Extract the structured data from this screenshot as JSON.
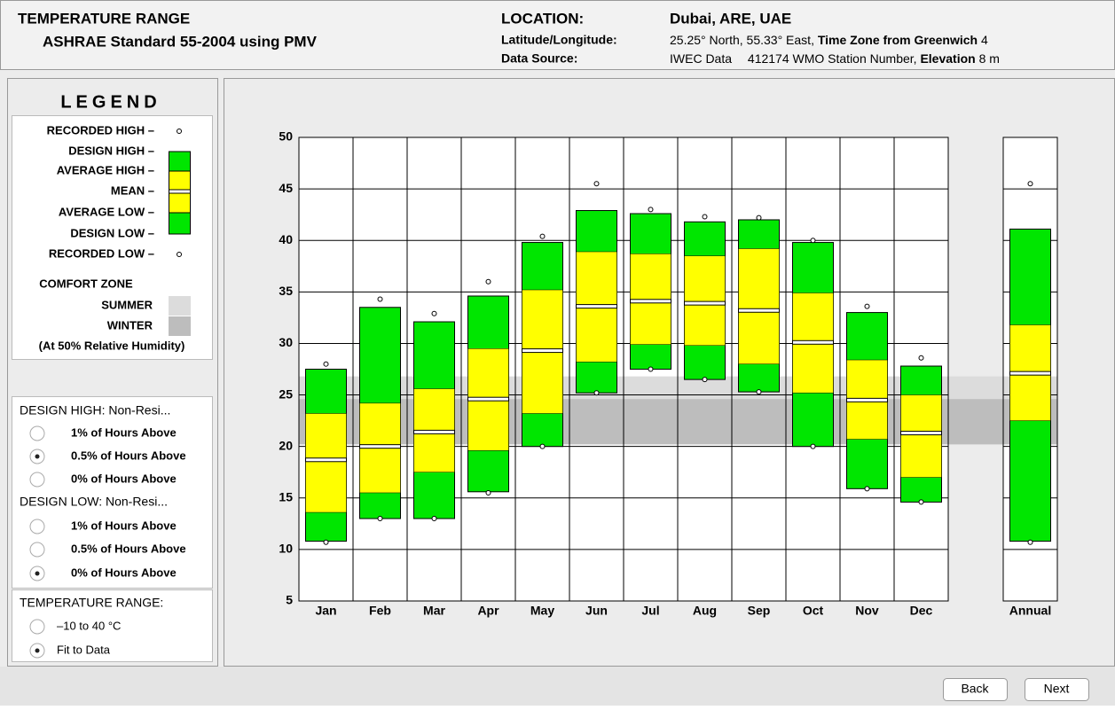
{
  "header": {
    "title": "TEMPERATURE RANGE",
    "subtitle": "ASHRAE Standard 55-2004 using PMV",
    "location_label": "LOCATION:",
    "location": "Dubai, ARE, UAE",
    "latlon_label": "Latitude/Longitude:",
    "latlon": "25.25° North, 55.33° East,",
    "timezone_label": "Time Zone from Greenwich",
    "timezone": "4",
    "source_label": "Data Source:",
    "source": "IWEC Data",
    "station": "412174 WMO Station Number,",
    "elevation_label": "Elevation",
    "elevation": "8 m"
  },
  "legend": {
    "title": "LEGEND",
    "comfort_title": "COMFORT ZONE",
    "summer": "SUMMER",
    "winter": "WINTER",
    "note": "(At 50% Relative Humidity)"
  },
  "design_high": {
    "label": "DESIGN HIGH:  Non-Resi...",
    "options": [
      "1% of Hours Above",
      "0.5% of Hours Above",
      "0% of Hours Above"
    ],
    "selected": 1
  },
  "design_low": {
    "label": "DESIGN LOW:  Non-Resi...",
    "options": [
      "1% of Hours Above",
      "0.5% of Hours Above",
      "0% of Hours Above"
    ],
    "selected": 2
  },
  "temperature_range": {
    "label": "TEMPERATURE RANGE:",
    "options": [
      "–10 to 40 °C",
      "Fit to Data"
    ],
    "selected": 1
  },
  "buttons": [
    "Back",
    "Next"
  ],
  "chart_data": {
    "type": "range_bar",
    "categories": [
      "Jan",
      "Feb",
      "Mar",
      "Apr",
      "May",
      "Jun",
      "Jul",
      "Aug",
      "Sep",
      "Oct",
      "Nov",
      "Dec",
      "Annual"
    ],
    "series": [
      {
        "name": "RECORDED HIGH –",
        "color": "#ffffff",
        "values": [
          28.0,
          34.3,
          32.9,
          36.0,
          40.4,
          45.5,
          43.0,
          42.3,
          42.2,
          40.0,
          33.6,
          28.6,
          45.5
        ]
      },
      {
        "name": "DESIGN HIGH –",
        "color": "#00e600",
        "values": [
          27.5,
          33.5,
          32.1,
          34.6,
          39.8,
          42.9,
          42.6,
          41.8,
          42.0,
          39.8,
          33.0,
          27.8,
          41.1
        ]
      },
      {
        "name": "AVERAGE HIGH –",
        "color": "#ffff00",
        "values": [
          23.2,
          24.2,
          25.6,
          29.5,
          35.2,
          38.9,
          38.7,
          38.5,
          39.2,
          34.9,
          28.4,
          25.0,
          31.8
        ]
      },
      {
        "name": "MEAN –",
        "color": "#ffffff",
        "values": [
          18.7,
          20.0,
          21.4,
          24.6,
          29.3,
          33.6,
          34.1,
          33.9,
          33.2,
          30.1,
          24.5,
          21.3,
          27.1
        ]
      },
      {
        "name": "AVERAGE LOW –",
        "color": "#ffff00",
        "values": [
          13.6,
          15.5,
          17.5,
          19.6,
          23.2,
          28.2,
          29.9,
          29.8,
          28.0,
          25.2,
          20.7,
          17.0,
          22.5
        ]
      },
      {
        "name": "DESIGN LOW –",
        "color": "#00e600",
        "values": [
          10.8,
          13.0,
          13.0,
          15.6,
          20.0,
          25.2,
          27.5,
          26.5,
          25.3,
          20.0,
          15.9,
          14.6,
          10.8
        ]
      },
      {
        "name": "RECORDED LOW –",
        "color": "#ffffff",
        "values": [
          10.7,
          13.0,
          13.0,
          15.5,
          20.0,
          25.2,
          27.5,
          26.5,
          25.3,
          20.0,
          15.9,
          14.6,
          10.7
        ]
      }
    ],
    "comfort_summer": [
      20.2,
      26.8
    ],
    "comfort_winter": [
      20.2,
      24.6
    ],
    "summer_color": "#dcdcdc",
    "winter_color": "#bdbdbd",
    "ylim": [
      5,
      50
    ],
    "yticks": [
      5,
      10,
      15,
      20,
      25,
      30,
      35,
      40,
      45,
      50
    ],
    "grid": true
  }
}
